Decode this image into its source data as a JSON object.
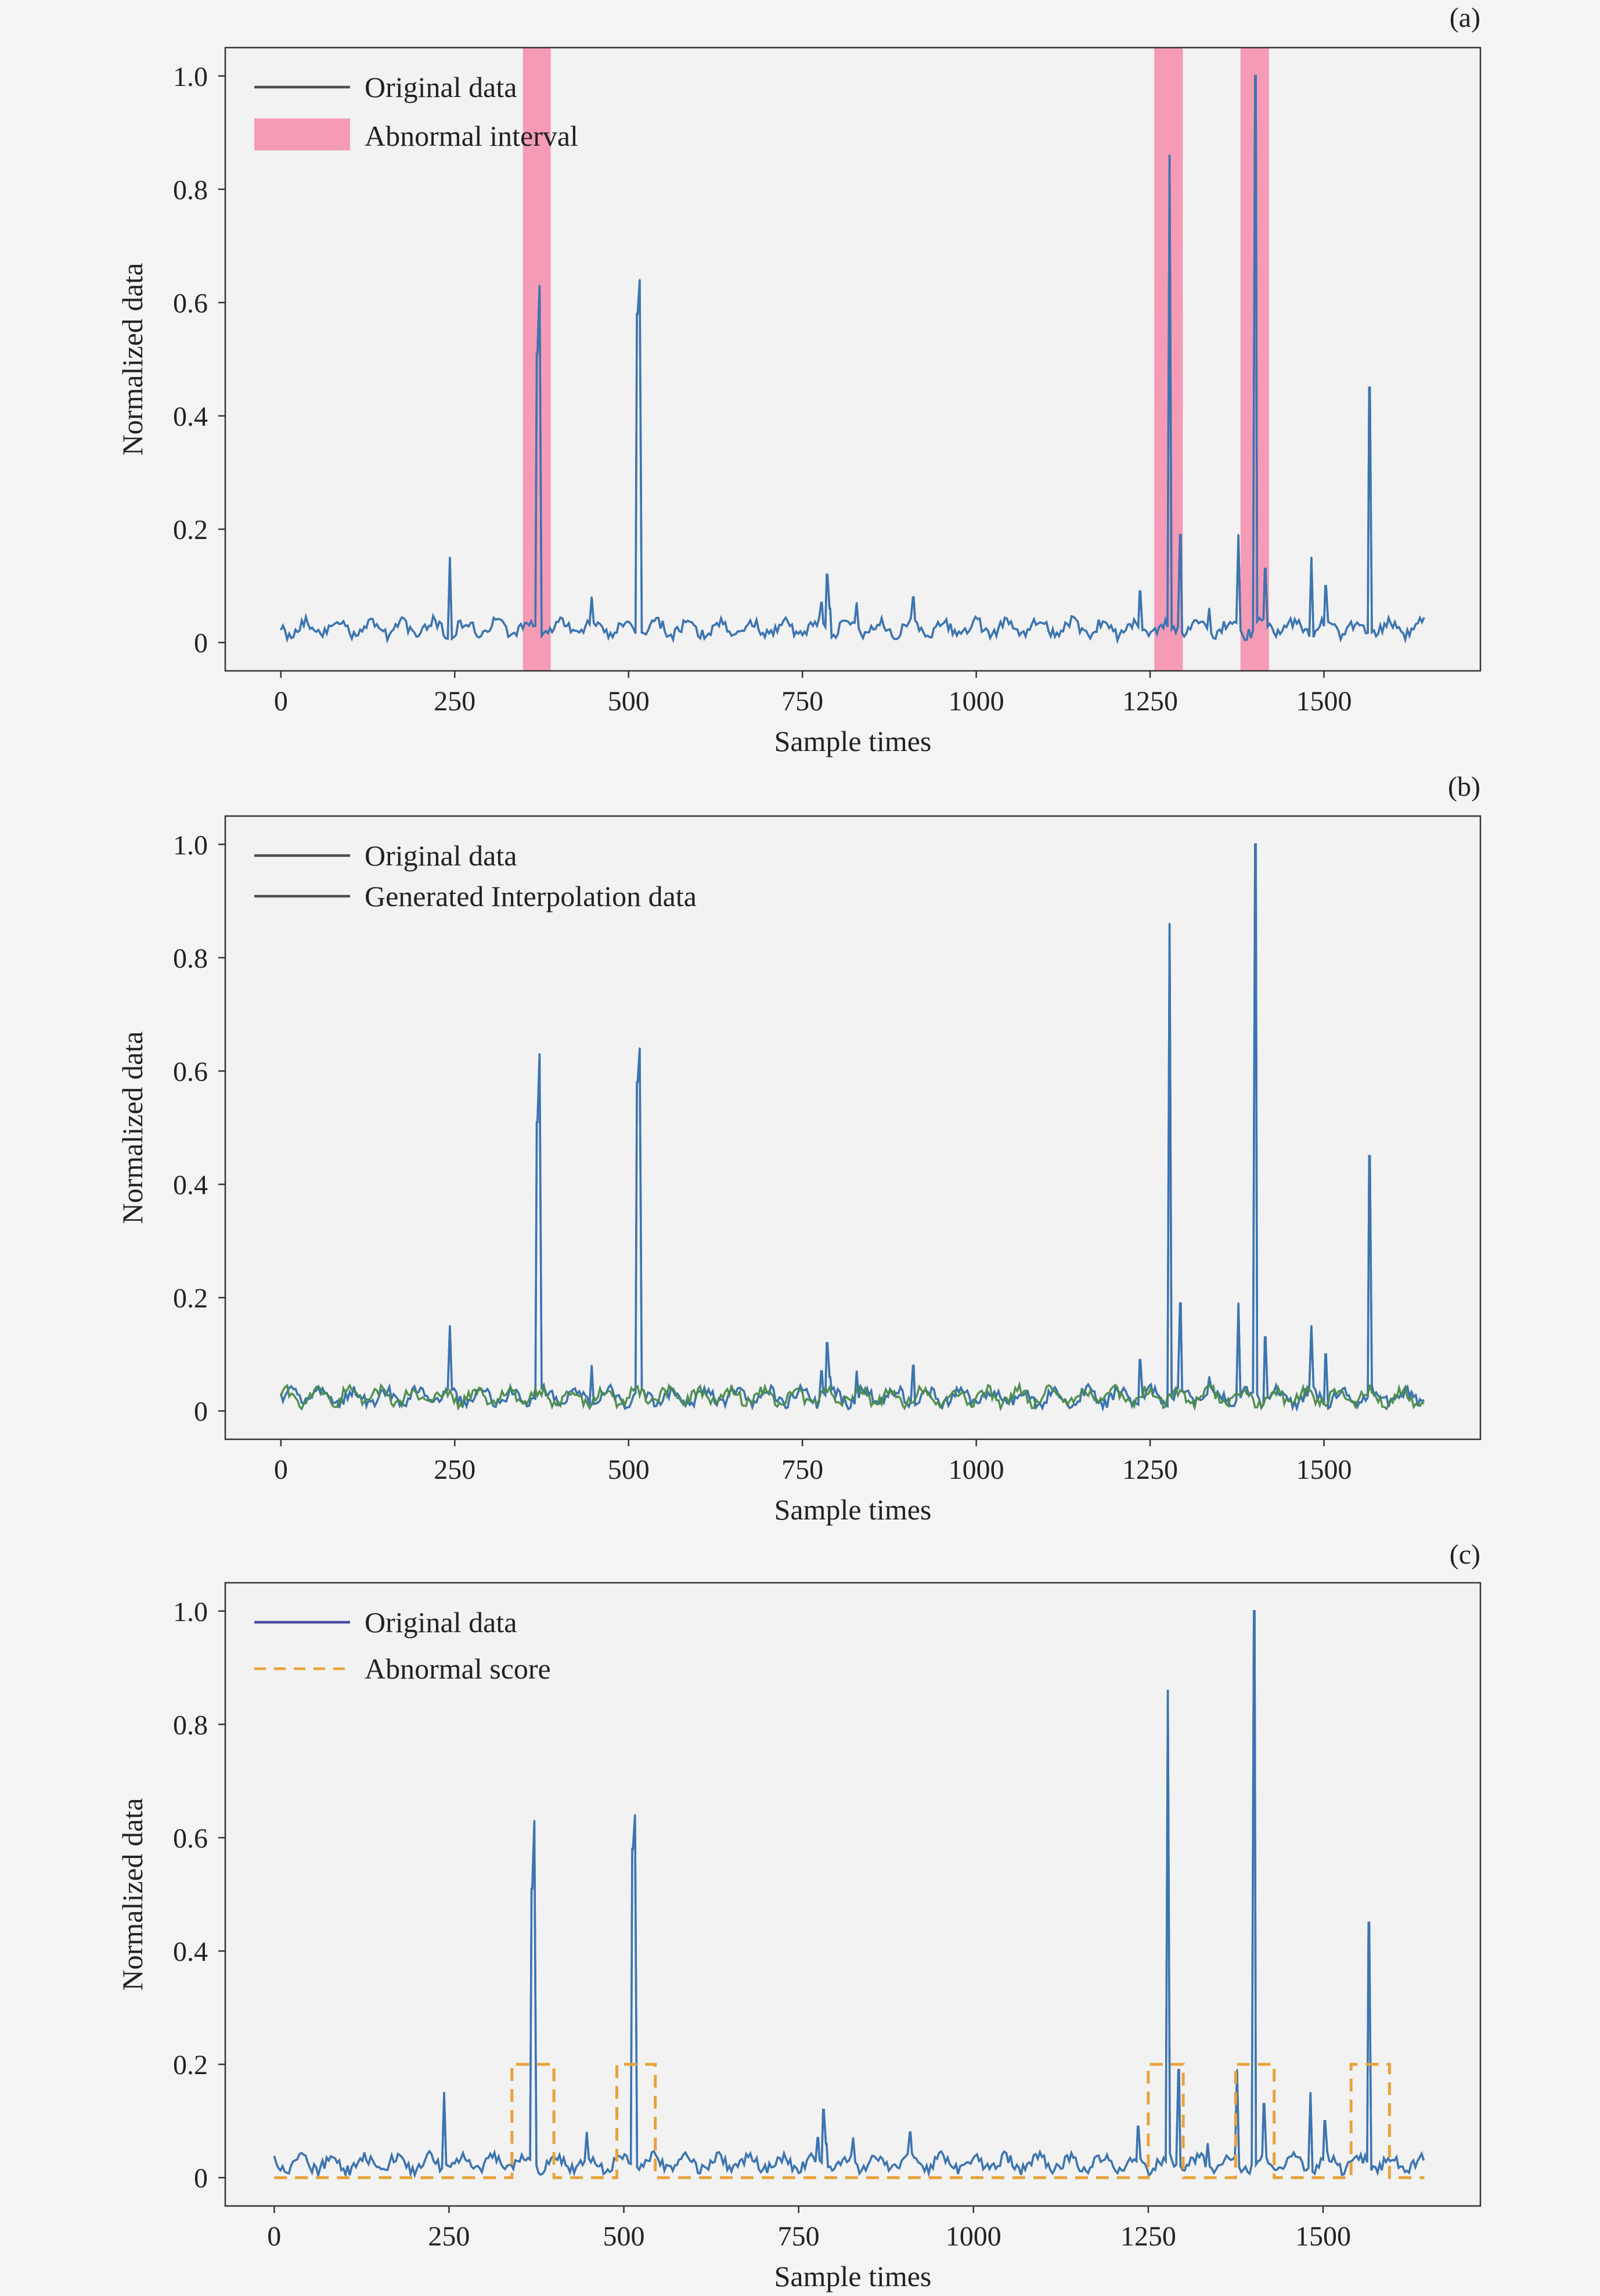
{
  "colors": {
    "background": "#f4f4f4",
    "plot_bg": "#f2f2f2",
    "frame": "#333333",
    "original_series": "#3a77b8",
    "gray_trace": "#505050",
    "interp_series": "#4a8a4a",
    "abnormal_interval": "#f59bb6",
    "abnormal_score": "#e8a23a",
    "legend_line_c": "#4b4aa0"
  },
  "chart_data": [
    {
      "id": "a",
      "type": "line",
      "panel_label": "(a)",
      "xlabel": "Sample times",
      "ylabel": "Normalized data",
      "xlim": [
        -80,
        1725
      ],
      "ylim": [
        -0.05,
        1.05
      ],
      "xticks": [
        0,
        250,
        500,
        750,
        1000,
        1250,
        1500
      ],
      "yticks": [
        {
          "v": 0,
          "label": "0"
        },
        {
          "v": 0.2,
          "label": "0.2"
        },
        {
          "v": 0.4,
          "label": "0.4"
        },
        {
          "v": 0.6,
          "label": "0.6"
        },
        {
          "v": 0.8,
          "label": "0.8"
        },
        {
          "v": 1.0,
          "label": "1.0"
        }
      ],
      "legend_position": "upper-left",
      "legend": [
        {
          "label": "Original data",
          "kind": "line",
          "color": "#505050"
        },
        {
          "label": "Abnormal interval",
          "kind": "patch",
          "color": "#f59bb6"
        }
      ],
      "abnormal_intervals": [
        [
          348,
          388
        ],
        [
          1256,
          1297
        ],
        [
          1380,
          1421
        ]
      ],
      "series": [
        {
          "name": "Original data",
          "color": "#3a77b8",
          "baseline": [
            0,
            1645
          ],
          "spikes": [
            [
              243,
              0.15
            ],
            [
              368,
              0.51
            ],
            [
              372,
              0.63
            ],
            [
              447,
              0.08
            ],
            [
              512,
              0.58
            ],
            [
              516,
              0.64
            ],
            [
              778,
              0.07
            ],
            [
              785,
              0.12
            ],
            [
              790,
              0.06
            ],
            [
              828,
              0.07
            ],
            [
              910,
              0.08
            ],
            [
              1235,
              0.09
            ],
            [
              1278,
              0.86
            ],
            [
              1294,
              0.19
            ],
            [
              1335,
              0.06
            ],
            [
              1377,
              0.19
            ],
            [
              1402,
              1.0
            ],
            [
              1415,
              0.13
            ],
            [
              1482,
              0.15
            ],
            [
              1502,
              0.1
            ],
            [
              1565,
              0.45
            ]
          ]
        }
      ]
    },
    {
      "id": "b",
      "type": "line",
      "panel_label": "(b)",
      "xlabel": "Sample times",
      "ylabel": "Normalized data",
      "xlim": [
        -80,
        1725
      ],
      "ylim": [
        -0.05,
        1.05
      ],
      "xticks": [
        0,
        250,
        500,
        750,
        1000,
        1250,
        1500
      ],
      "yticks": [
        {
          "v": 0,
          "label": "0"
        },
        {
          "v": 0.2,
          "label": "0.2"
        },
        {
          "v": 0.4,
          "label": "0.4"
        },
        {
          "v": 0.6,
          "label": "0.6"
        },
        {
          "v": 0.8,
          "label": "0.8"
        },
        {
          "v": 1.0,
          "label": "1.0"
        }
      ],
      "legend_position": "upper-left",
      "legend": [
        {
          "label": "Original data",
          "kind": "line",
          "color": "#505050"
        },
        {
          "label": "Generated Interpolation data",
          "kind": "line",
          "color": "#505050"
        }
      ],
      "series": [
        {
          "name": "Original data",
          "color": "#3a77b8",
          "baseline": [
            0,
            1645
          ],
          "spikes": [
            [
              243,
              0.15
            ],
            [
              368,
              0.51
            ],
            [
              372,
              0.63
            ],
            [
              447,
              0.08
            ],
            [
              512,
              0.58
            ],
            [
              516,
              0.64
            ],
            [
              778,
              0.07
            ],
            [
              785,
              0.12
            ],
            [
              790,
              0.06
            ],
            [
              828,
              0.07
            ],
            [
              910,
              0.08
            ],
            [
              1235,
              0.09
            ],
            [
              1278,
              0.86
            ],
            [
              1294,
              0.19
            ],
            [
              1335,
              0.06
            ],
            [
              1377,
              0.19
            ],
            [
              1402,
              1.0
            ],
            [
              1415,
              0.13
            ],
            [
              1482,
              0.15
            ],
            [
              1502,
              0.1
            ],
            [
              1565,
              0.45
            ]
          ]
        },
        {
          "name": "Generated Interpolation data",
          "color": "#4a8a4a",
          "baseline": [
            0,
            1645
          ],
          "spikes": []
        }
      ]
    },
    {
      "id": "c",
      "type": "line",
      "panel_label": "(c)",
      "xlabel": "Sample times",
      "ylabel": "Normalized data",
      "xlim": [
        -70,
        1725
      ],
      "ylim": [
        -0.05,
        1.05
      ],
      "xticks": [
        0,
        250,
        500,
        750,
        1000,
        1250,
        1500
      ],
      "yticks": [
        {
          "v": 0,
          "label": "0"
        },
        {
          "v": 0.2,
          "label": "0.2"
        },
        {
          "v": 0.4,
          "label": "0.4"
        },
        {
          "v": 0.6,
          "label": "0.6"
        },
        {
          "v": 0.8,
          "label": "0.8"
        },
        {
          "v": 1.0,
          "label": "1.0"
        }
      ],
      "legend_position": "upper-left",
      "legend": [
        {
          "label": "Original data",
          "kind": "line",
          "color": "#4b4aa0"
        },
        {
          "label": "Abnormal score",
          "kind": "dashed",
          "color": "#e8a23a"
        }
      ],
      "series": [
        {
          "name": "Original data",
          "color": "#3a77b8",
          "baseline": [
            0,
            1645
          ],
          "spikes": [
            [
              243,
              0.15
            ],
            [
              368,
              0.51
            ],
            [
              372,
              0.63
            ],
            [
              447,
              0.08
            ],
            [
              512,
              0.58
            ],
            [
              516,
              0.64
            ],
            [
              778,
              0.07
            ],
            [
              785,
              0.12
            ],
            [
              790,
              0.06
            ],
            [
              828,
              0.07
            ],
            [
              910,
              0.08
            ],
            [
              1235,
              0.09
            ],
            [
              1278,
              0.86
            ],
            [
              1294,
              0.19
            ],
            [
              1335,
              0.06
            ],
            [
              1377,
              0.19
            ],
            [
              1402,
              1.0
            ],
            [
              1415,
              0.13
            ],
            [
              1482,
              0.15
            ],
            [
              1502,
              0.1
            ],
            [
              1565,
              0.45
            ]
          ]
        },
        {
          "name": "Abnormal score",
          "color": "#e8a23a",
          "dashed": true,
          "step_points": [
            [
              0,
              0
            ],
            [
              340,
              0
            ],
            [
              340,
              0.2
            ],
            [
              400,
              0.2
            ],
            [
              400,
              0
            ],
            [
              490,
              0
            ],
            [
              490,
              0.2
            ],
            [
              545,
              0.2
            ],
            [
              545,
              0
            ],
            [
              1250,
              0
            ],
            [
              1250,
              0.2
            ],
            [
              1300,
              0.2
            ],
            [
              1300,
              0
            ],
            [
              1375,
              0
            ],
            [
              1375,
              0.2
            ],
            [
              1430,
              0.2
            ],
            [
              1430,
              0
            ],
            [
              1540,
              0
            ],
            [
              1540,
              0.2
            ],
            [
              1595,
              0.2
            ],
            [
              1595,
              0
            ],
            [
              1645,
              0
            ]
          ]
        }
      ]
    }
  ]
}
